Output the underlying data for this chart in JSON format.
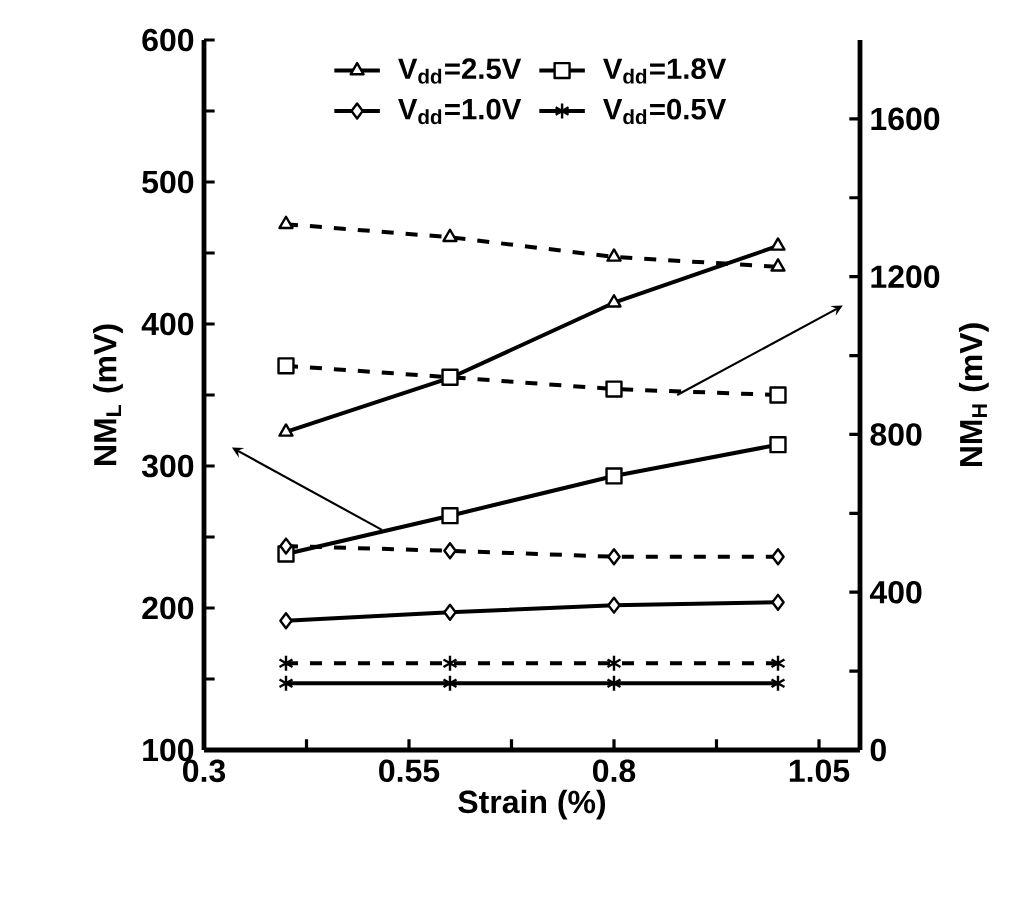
{
  "chart_data": {
    "type": "line",
    "xlabel": "Strain (%)",
    "ylabel": "NM$_{L}$ (mV)",
    "y2label": "NM$_{H}$ (mV)",
    "x": [
      0.4,
      0.6,
      0.8,
      1.0
    ],
    "xlim": [
      0.3,
      1.1
    ],
    "xticks": [
      0.3,
      {
        "value": 0.425,
        "label": null
      },
      0.55,
      {
        "value": 0.675,
        "label": null
      },
      0.8,
      {
        "value": 0.925,
        "label": null
      },
      1.05
    ],
    "ylim": [
      100,
      600
    ],
    "yticks": [
      100,
      {
        "value": 150,
        "label": null
      },
      200,
      {
        "value": 250,
        "label": null
      },
      300,
      {
        "value": 350,
        "label": null
      },
      400,
      {
        "value": 450,
        "label": null
      },
      500,
      {
        "value": 550,
        "label": null
      },
      600
    ],
    "y2lim": [
      0,
      1800
    ],
    "y2ticks": [
      0,
      {
        "value": 200,
        "label": null
      },
      400,
      {
        "value": 600,
        "label": null
      },
      800,
      {
        "value": 1000,
        "label": null
      },
      1200,
      {
        "value": 1400,
        "label": null
      },
      1600
    ],
    "legend": "top",
    "series": [
      {
        "name": "V$_{dd}$=2.5V",
        "color": "#000000",
        "marker": "triangle",
        "line_style": "solid",
        "values": [
          324,
          362,
          415,
          455
        ]
      },
      {
        "name": "V$_{dd}$=1.8V",
        "color": "#000000",
        "marker": "square",
        "line_style": "solid",
        "values": [
          238,
          265,
          293,
          315
        ]
      },
      {
        "name": "V$_{dd}$=1.0V",
        "color": "#000000",
        "marker": "diamond",
        "line_style": "solid",
        "values": [
          191,
          197,
          202,
          204
        ]
      },
      {
        "name": "V$_{dd}$=0.5V",
        "color": "#000000",
        "marker": "cross",
        "line_style": "solid",
        "values": [
          147,
          147,
          147,
          147
        ]
      },
      {
        "color": "#000000",
        "marker": "triangle",
        "line_style": "dashed",
        "axis": "y2",
        "values": [
          1333,
          1300,
          1250,
          1225
        ]
      },
      {
        "color": "#000000",
        "marker": "square",
        "line_style": "dashed",
        "axis": "y2",
        "values": [
          974,
          945,
          915,
          900
        ]
      },
      {
        "color": "#000000",
        "marker": "diamond",
        "line_style": "dashed",
        "axis": "y2",
        "values": [
          517,
          505,
          490,
          490
        ]
      },
      {
        "color": "#000000",
        "marker": "cross",
        "line_style": "dashed",
        "axis": "y2",
        "values": [
          220,
          220,
          220,
          220
        ]
      }
    ]
  }
}
